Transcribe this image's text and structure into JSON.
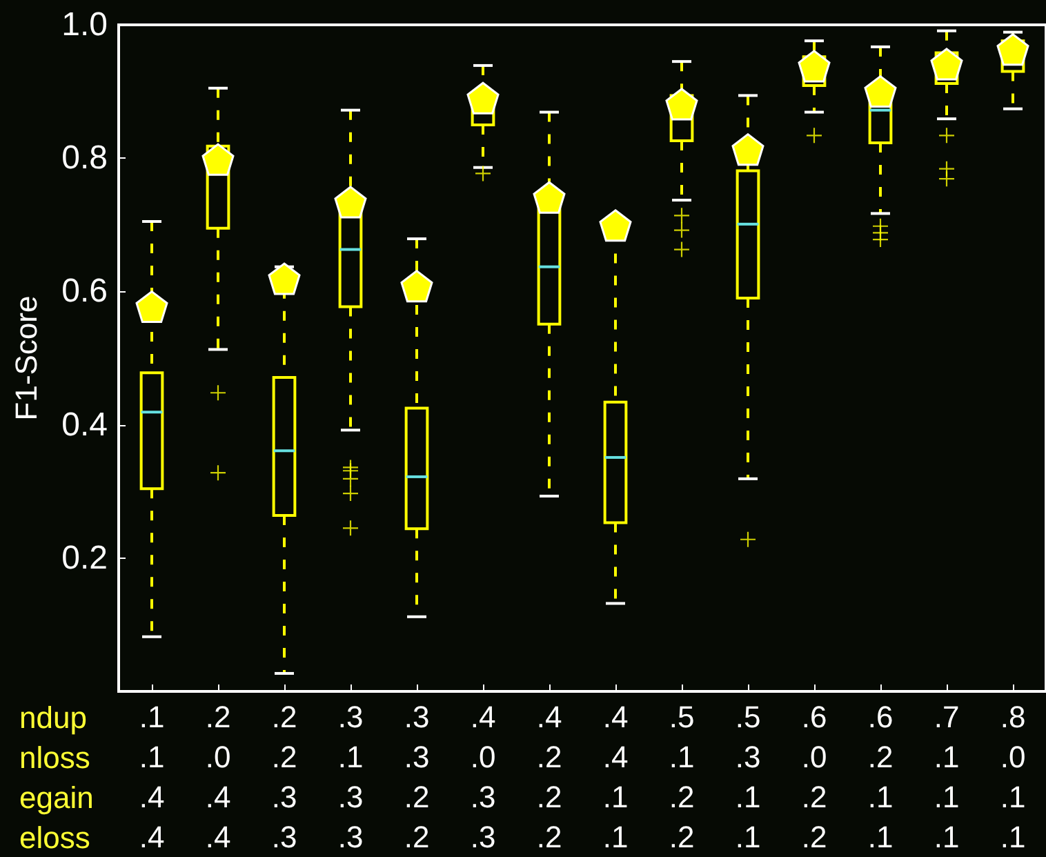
{
  "chart_data": {
    "type": "box",
    "ylabel": "F1-Score",
    "categories": [
      ".1\n.1\n.4\n.4",
      ".2\n.0\n.4\n.4",
      ".2\n.2\n.3\n.3",
      ".3\n.1\n.3\n.3",
      ".3\n.3\n.2\n.2",
      ".4\n.0\n.3\n.3",
      ".4\n.2\n.2\n.2",
      ".4\n.4\n.1\n.1",
      ".5\n.1\n.2\n.2",
      ".5\n.3\n.1\n.1",
      ".6\n.0\n.2\n.2",
      ".6\n.2\n.1\n.1",
      ".7\n.1\n.1\n.1",
      ".8\n.0\n.1\n.1"
    ],
    "ylim": [
      0,
      1
    ],
    "yticks": [
      0.2,
      0.4,
      0.6,
      0.8,
      {
        "value": 1,
        "label": "1.0"
      }
    ],
    "grid": false,
    "annotations": [
      "ndup",
      "nloss",
      "egain",
      "eloss"
    ],
    "series": [
      {
        "color": "#ffff00",
        "boxes": [
          {
            "low": 0.082,
            "q1": 0.304,
            "median": 0.419,
            "q3": 0.478,
            "high": 0.705
          },
          {
            "low": 0.513,
            "q1": 0.695,
            "median": 0.78,
            "q3": 0.818,
            "high": 0.905,
            "outliers": [
              0.448,
              0.328
            ]
          },
          {
            "low": 0.027,
            "q1": 0.264,
            "median": 0.361,
            "q3": 0.471,
            "high": 0.637
          },
          {
            "low": 0.392,
            "q1": 0.577,
            "median": 0.663,
            "q3": 0.73,
            "high": 0.872,
            "outliers": [
              0.336,
              0.331,
              0.319,
              0.297,
              0.245
            ]
          },
          {
            "low": 0.112,
            "q1": 0.244,
            "median": 0.322,
            "q3": 0.425,
            "high": 0.679
          },
          {
            "low": 0.786,
            "q1": 0.85,
            "median": 0.872,
            "q3": 0.898,
            "high": 0.939,
            "outliers": [
              0.777
            ]
          },
          {
            "low": 0.293,
            "q1": 0.551,
            "median": 0.637,
            "q3": 0.731,
            "high": 0.869
          },
          {
            "low": 0.132,
            "q1": 0.253,
            "median": 0.351,
            "q3": 0.434,
            "high": 0.69
          },
          {
            "low": 0.737,
            "q1": 0.826,
            "median": 0.863,
            "q3": 0.894,
            "high": 0.945,
            "outliers": [
              0.714,
              0.692,
              0.663
            ]
          },
          {
            "low": 0.319,
            "q1": 0.59,
            "median": 0.701,
            "q3": 0.781,
            "high": 0.894,
            "outliers": [
              0.228
            ]
          },
          {
            "low": 0.869,
            "q1": 0.909,
            "median": 0.932,
            "q3": 0.952,
            "high": 0.976,
            "outliers": [
              0.834
            ]
          },
          {
            "low": 0.717,
            "q1": 0.823,
            "median": 0.872,
            "q3": 0.905,
            "high": 0.967,
            "outliers": [
              0.698,
              0.688,
              0.678
            ]
          },
          {
            "low": 0.859,
            "q1": 0.912,
            "median": 0.936,
            "q3": 0.958,
            "high": 0.991,
            "outliers": [
              0.834,
              0.784,
              0.769
            ]
          },
          {
            "low": 0.874,
            "q1": 0.93,
            "median": 0.959,
            "q3": 0.976,
            "high": 0.989
          }
        ]
      },
      {
        "type": "scatter",
        "color": "#ffff00",
        "x": [
          ".1\n.1\n.4\n.4",
          ".2\n.0\n.4\n.4",
          ".2\n.2\n.3\n.3",
          ".3\n.1\n.3\n.3",
          ".3\n.3\n.2\n.2",
          ".4\n.0\n.3\n.3",
          ".4\n.2\n.2\n.2",
          ".4\n.4\n.1\n.1",
          ".5\n.1\n.2\n.2",
          ".5\n.3\n.1\n.1",
          ".6\n.0\n.2\n.2",
          ".6\n.2\n.1\n.1",
          ".7\n.1\n.1\n.1",
          ".8\n.0\n.1\n.1"
        ],
        "values": [
          0.577,
          0.798,
          0.619,
          0.734,
          0.608,
          0.89,
          0.741,
          0.699,
          0.881,
          0.813,
          0.938,
          0.9,
          0.941,
          0.963
        ]
      }
    ]
  }
}
